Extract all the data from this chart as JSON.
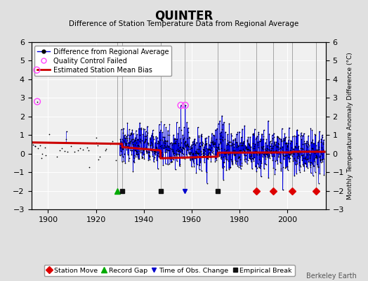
{
  "title": "QUINTER",
  "subtitle": "Difference of Station Temperature Data from Regional Average",
  "ylabel_right": "Monthly Temperature Anomaly Difference (°C)",
  "ylim": [
    -3,
    6
  ],
  "yticks": [
    -3,
    -2,
    -1,
    0,
    1,
    2,
    3,
    4,
    5,
    6
  ],
  "xlim": [
    1893,
    2016
  ],
  "xticks": [
    1900,
    1920,
    1940,
    1960,
    1980,
    2000
  ],
  "background_color": "#e0e0e0",
  "plot_background": "#f0f0f0",
  "grid_color": "#ffffff",
  "line_color": "#0000dd",
  "bias_color": "#cc0000",
  "qc_color": "#ff44ff",
  "seed": 12345,
  "data_start": 1893.5,
  "data_end": 2015.5,
  "sparse_end": 1930,
  "dense_start": 1930,
  "station_moves": [
    1987,
    1994,
    2002,
    2012
  ],
  "record_gaps": [
    1929
  ],
  "obs_changes": [
    1957
  ],
  "empirical_breaks": [
    1931,
    1947,
    1971
  ],
  "watermark": "Berkeley Earth",
  "marker_y": -2.0
}
